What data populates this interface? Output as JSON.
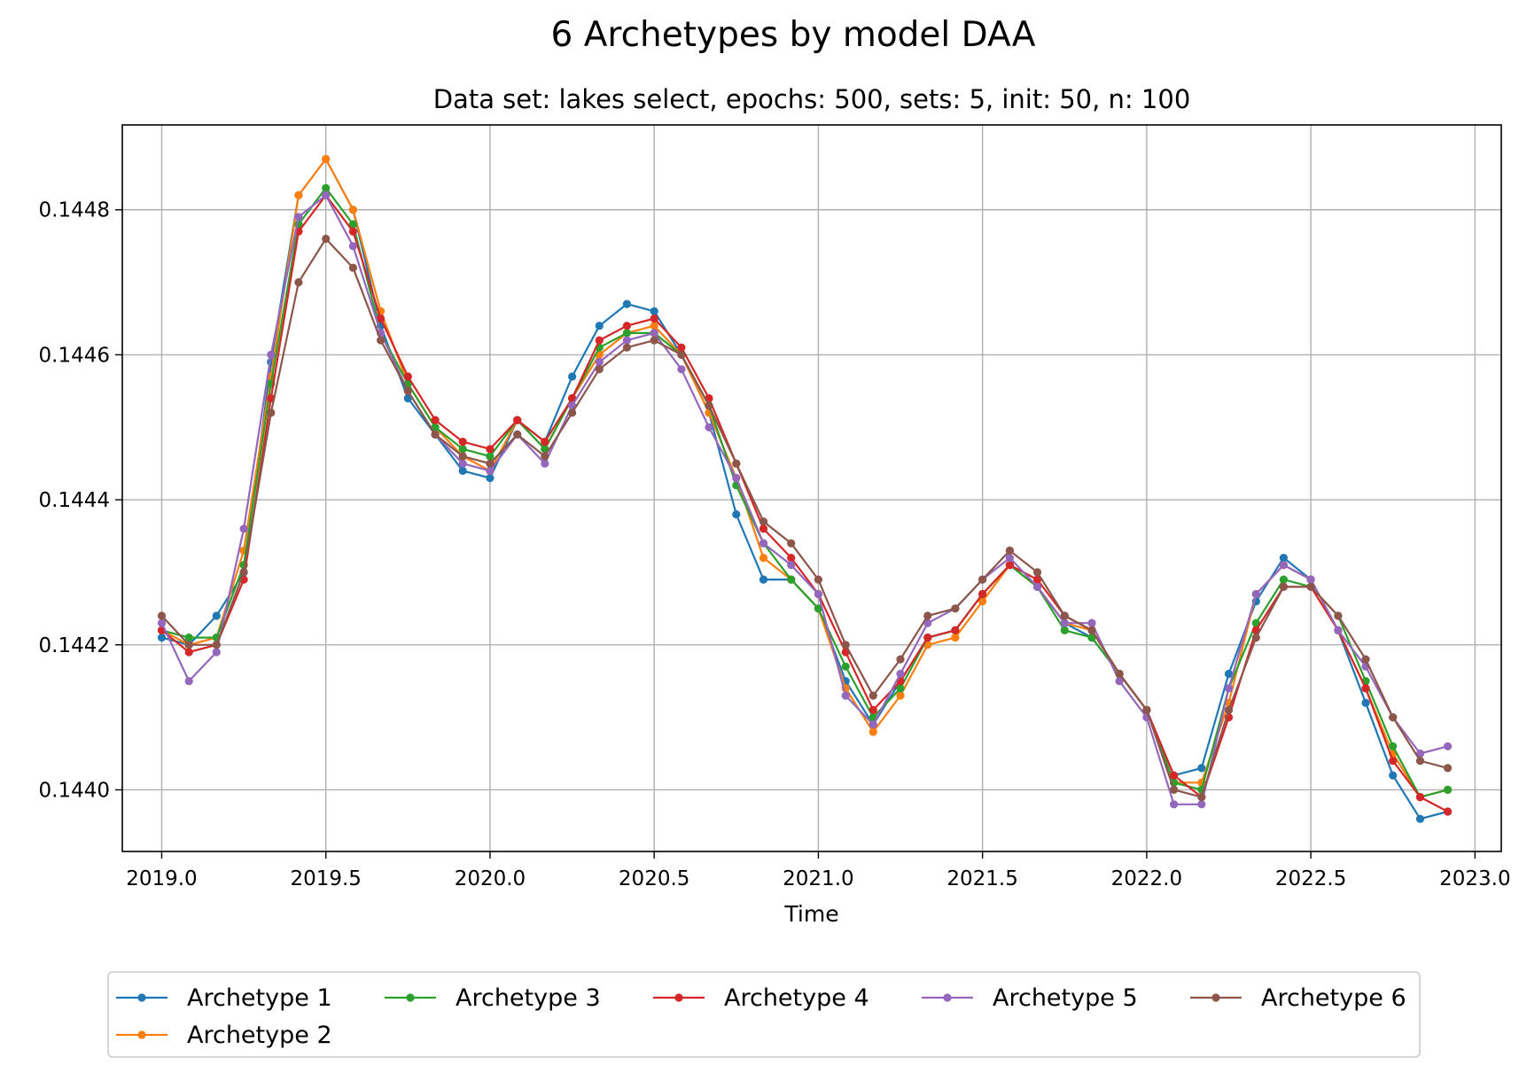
{
  "chart_data": {
    "type": "line",
    "title": "6 Archetypes by model DAA",
    "subtitle": "Data set: lakes select, epochs: 500, sets: 5, init: 50, n: 100",
    "xlabel": "Time",
    "ylabel": "",
    "xlim": [
      2018.88,
      2023.08
    ],
    "ylim": [
      0.143915,
      0.144917
    ],
    "xticks": [
      "2019.0",
      "2019.5",
      "2020.0",
      "2020.5",
      "2021.0",
      "2021.5",
      "2022.0",
      "2022.5",
      "2023.0"
    ],
    "yticks": [
      "0.1440",
      "0.1442",
      "0.1444",
      "0.1446",
      "0.1448"
    ],
    "grid": true,
    "legend_position": "bottom",
    "x": [
      2019.0,
      2019.083,
      2019.167,
      2019.25,
      2019.333,
      2019.417,
      2019.5,
      2019.583,
      2019.667,
      2019.75,
      2019.833,
      2019.917,
      2020.0,
      2020.083,
      2020.167,
      2020.25,
      2020.333,
      2020.417,
      2020.5,
      2020.583,
      2020.667,
      2020.75,
      2020.833,
      2020.917,
      2021.0,
      2021.083,
      2021.167,
      2021.25,
      2021.333,
      2021.417,
      2021.5,
      2021.583,
      2021.667,
      2021.75,
      2021.833,
      2021.917,
      2022.0,
      2022.083,
      2022.167,
      2022.25,
      2022.333,
      2022.417,
      2022.5,
      2022.583,
      2022.667,
      2022.75,
      2022.833,
      2022.917
    ],
    "series": [
      {
        "name": "Archetype 1",
        "color": "#1f77b4",
        "values": [
          0.14421,
          0.1442,
          0.14424,
          0.1443,
          0.14459,
          0.14482,
          0.14487,
          0.1448,
          0.14464,
          0.14454,
          0.14449,
          0.14444,
          0.14443,
          0.14451,
          0.14448,
          0.14457,
          0.14464,
          0.14467,
          0.14466,
          0.1446,
          0.14452,
          0.14438,
          0.14429,
          0.14429,
          0.14425,
          0.14415,
          0.14409,
          0.14415,
          0.14421,
          0.14422,
          0.14427,
          0.14431,
          0.14428,
          0.14423,
          0.14421,
          0.14416,
          0.14411,
          0.14402,
          0.14403,
          0.14416,
          0.14426,
          0.14432,
          0.14429,
          0.14422,
          0.14412,
          0.14402,
          0.14396,
          0.14397
        ]
      },
      {
        "name": "Archetype 2",
        "color": "#ff7f0e",
        "values": [
          0.14422,
          0.1442,
          0.14421,
          0.14433,
          0.14457,
          0.14482,
          0.14487,
          0.1448,
          0.14466,
          0.14456,
          0.1445,
          0.14446,
          0.14444,
          0.14451,
          0.14447,
          0.14454,
          0.1446,
          0.14463,
          0.14464,
          0.1446,
          0.14452,
          0.14443,
          0.14432,
          0.14429,
          0.14425,
          0.14414,
          0.14408,
          0.14413,
          0.1442,
          0.14421,
          0.14426,
          0.14431,
          0.14428,
          0.14423,
          0.14422,
          0.14416,
          0.14411,
          0.14401,
          0.14401,
          0.14412,
          0.14427,
          0.14431,
          0.14429,
          0.14422,
          0.14414,
          0.14405,
          0.14399,
          0.144
        ]
      },
      {
        "name": "Archetype 3",
        "color": "#2ca02c",
        "values": [
          0.14422,
          0.14421,
          0.14421,
          0.14431,
          0.14456,
          0.14478,
          0.14483,
          0.14478,
          0.14463,
          0.14456,
          0.1445,
          0.14447,
          0.14446,
          0.14451,
          0.14447,
          0.14454,
          0.14461,
          0.14463,
          0.14463,
          0.1446,
          0.14453,
          0.14442,
          0.14434,
          0.14429,
          0.14425,
          0.14417,
          0.1441,
          0.14414,
          0.14421,
          0.14422,
          0.14427,
          0.14431,
          0.14428,
          0.14422,
          0.14421,
          0.14416,
          0.14411,
          0.14401,
          0.144,
          0.14414,
          0.14423,
          0.14429,
          0.14428,
          0.14424,
          0.14415,
          0.14406,
          0.14399,
          0.144
        ]
      },
      {
        "name": "Archetype 4",
        "color": "#d62728",
        "values": [
          0.14422,
          0.14419,
          0.1442,
          0.14429,
          0.14454,
          0.14477,
          0.14482,
          0.14477,
          0.14465,
          0.14457,
          0.14451,
          0.14448,
          0.14447,
          0.14451,
          0.14448,
          0.14454,
          0.14462,
          0.14464,
          0.14465,
          0.14461,
          0.14454,
          0.14445,
          0.14436,
          0.14432,
          0.14427,
          0.14419,
          0.14411,
          0.14415,
          0.14421,
          0.14422,
          0.14427,
          0.14431,
          0.14429,
          0.14424,
          0.14422,
          0.14416,
          0.14411,
          0.14402,
          0.14399,
          0.1441,
          0.14422,
          0.14428,
          0.14428,
          0.14422,
          0.14414,
          0.14404,
          0.14399,
          0.14397
        ]
      },
      {
        "name": "Archetype 5",
        "color": "#9467bd",
        "values": [
          0.14423,
          0.14415,
          0.14419,
          0.14436,
          0.1446,
          0.14479,
          0.14482,
          0.14475,
          0.14463,
          0.14455,
          0.14449,
          0.14445,
          0.14444,
          0.14449,
          0.14445,
          0.14453,
          0.14459,
          0.14462,
          0.14463,
          0.14458,
          0.1445,
          0.14443,
          0.14434,
          0.14431,
          0.14427,
          0.14413,
          0.14409,
          0.14416,
          0.14423,
          0.14425,
          0.14429,
          0.14432,
          0.14428,
          0.14423,
          0.14423,
          0.14415,
          0.1441,
          0.14398,
          0.14398,
          0.14414,
          0.14427,
          0.14431,
          0.14429,
          0.14422,
          0.14417,
          0.1441,
          0.14405,
          0.14406
        ]
      },
      {
        "name": "Archetype 6",
        "color": "#8c564b",
        "values": [
          0.14424,
          0.1442,
          0.1442,
          0.1443,
          0.14452,
          0.1447,
          0.14476,
          0.14472,
          0.14462,
          0.14455,
          0.14449,
          0.14446,
          0.14445,
          0.14449,
          0.14446,
          0.14452,
          0.14458,
          0.14461,
          0.14462,
          0.1446,
          0.14453,
          0.14445,
          0.14437,
          0.14434,
          0.14429,
          0.1442,
          0.14413,
          0.14418,
          0.14424,
          0.14425,
          0.14429,
          0.14433,
          0.1443,
          0.14424,
          0.14422,
          0.14416,
          0.14411,
          0.144,
          0.14399,
          0.14411,
          0.14421,
          0.14428,
          0.14428,
          0.14424,
          0.14418,
          0.1441,
          0.14404,
          0.14403
        ]
      }
    ]
  }
}
